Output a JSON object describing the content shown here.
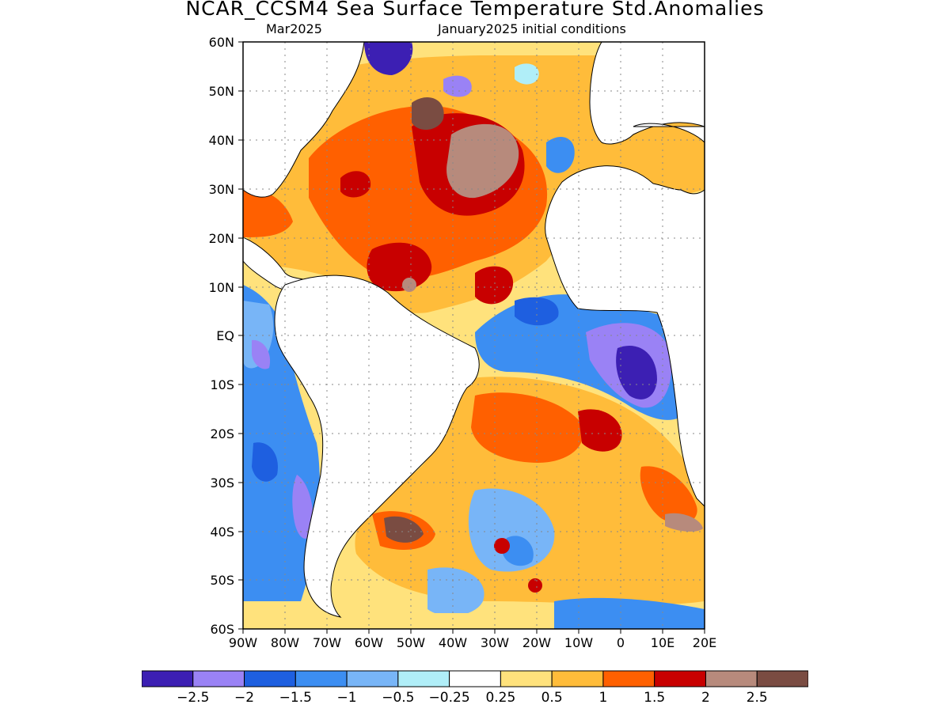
{
  "header": {
    "title": "NCAR_CCSM4 Sea Surface Temperature Std.Anomalies",
    "valid_month": "Mar2025",
    "init_label": "January2025 initial conditions"
  },
  "axes": {
    "lat_labels": [
      "60N",
      "50N",
      "40N",
      "30N",
      "20N",
      "10N",
      "EQ",
      "10S",
      "20S",
      "30S",
      "40S",
      "50S",
      "60S"
    ],
    "lon_labels": [
      "90W",
      "80W",
      "70W",
      "60W",
      "50W",
      "40W",
      "30W",
      "20W",
      "10W",
      "0",
      "10E",
      "20E"
    ],
    "lat_range": [
      -60,
      60
    ],
    "lon_range": [
      -90,
      20
    ],
    "grid": "dotted"
  },
  "colorbar": {
    "colors": [
      "#3c1fb3",
      "#9a82f5",
      "#1e5fe0",
      "#3c8ef2",
      "#78b5f7",
      "#b0eef8",
      "#ffffff",
      "#ffe27c",
      "#ffbc3a",
      "#ff6000",
      "#c80000",
      "#b78a7c",
      "#7a4c42"
    ],
    "labels": [
      "−2.5",
      "−2",
      "−1.5",
      "−1",
      "−0.5",
      "−0.25",
      "0.25",
      "0.5",
      "1",
      "1.5",
      "2",
      "2.5"
    ]
  },
  "field_regions": [
    {
      "name": "north-atlantic-warm",
      "category": "1 to 2.5",
      "color": "#ff6000"
    },
    {
      "name": "gulf-of-guinea-cold",
      "category": "-2.5 to -1",
      "color": "#3c1fb3"
    },
    {
      "name": "south-atlantic-warm",
      "category": "0.5 to 2",
      "color": "#ffbc3a"
    },
    {
      "name": "southeast-pacific-cold",
      "category": "-1.5 to -0.5",
      "color": "#3c8ef2"
    }
  ]
}
